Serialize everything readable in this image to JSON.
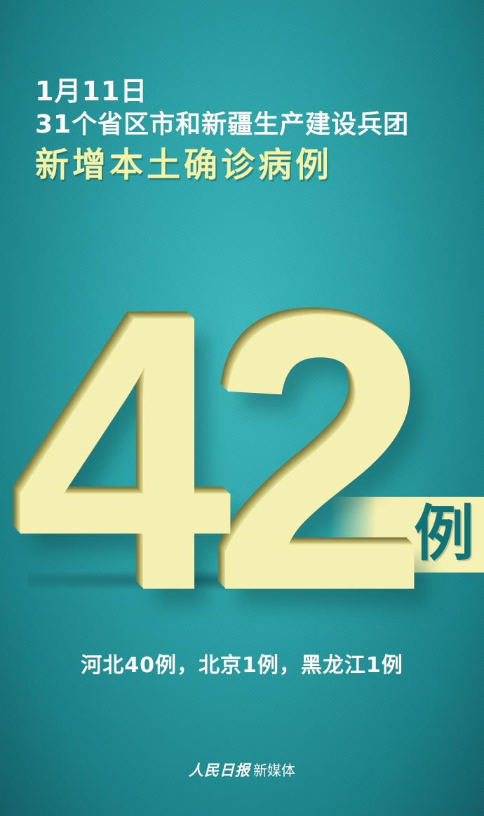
{
  "headline": {
    "date": "1月11日",
    "region": "31个省区市和新疆生产建设兵团",
    "subject": "新增本土确诊病例"
  },
  "figure": {
    "number": "42",
    "unit": "例"
  },
  "breakdown": "河北40例，北京1例，黑龙江1例",
  "footer": {
    "logo": "人民日报",
    "suffix": "新媒体"
  },
  "colors": {
    "background": "#2aa2a6",
    "numeral": "#f3f0b2",
    "accent": "#f4f3a6",
    "unit": "#0f7377"
  }
}
